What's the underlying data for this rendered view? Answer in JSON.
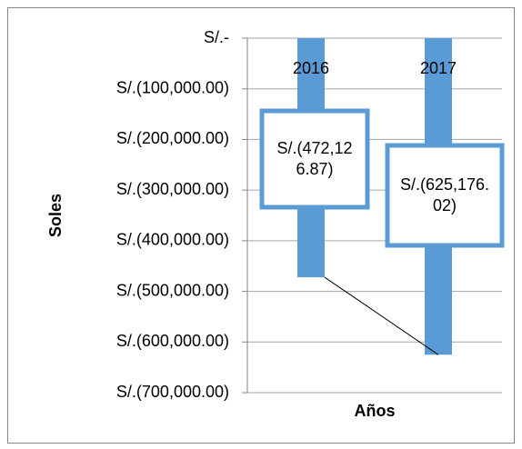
{
  "chart_data": {
    "type": "bar",
    "categories": [
      "2016",
      "2017"
    ],
    "series": [
      {
        "name": "Soles",
        "color": "#5b9bd5",
        "values": [
          -472126.87,
          -625176.02
        ],
        "value_labels": [
          "S/.(472,126.87)",
          "S/.(625,176.02)"
        ]
      }
    ],
    "ylim": [
      -700000,
      0
    ],
    "yticks": [
      {
        "value": 0,
        "label": "S/.-"
      },
      {
        "value": -100000,
        "label": "S/.(100,000.00)"
      },
      {
        "value": -200000,
        "label": "S/.(200,000.00)"
      },
      {
        "value": -300000,
        "label": "S/.(300,000.00)"
      },
      {
        "value": -400000,
        "label": "S/.(400,000.00)"
      },
      {
        "value": -500000,
        "label": "S/.(500,000.00)"
      },
      {
        "value": -600000,
        "label": "S/.(600,000.00)"
      },
      {
        "value": -700000,
        "label": "S/.(700,000.00)"
      }
    ],
    "ylabel": "Soles",
    "xlabel": "Años",
    "grid": true
  }
}
